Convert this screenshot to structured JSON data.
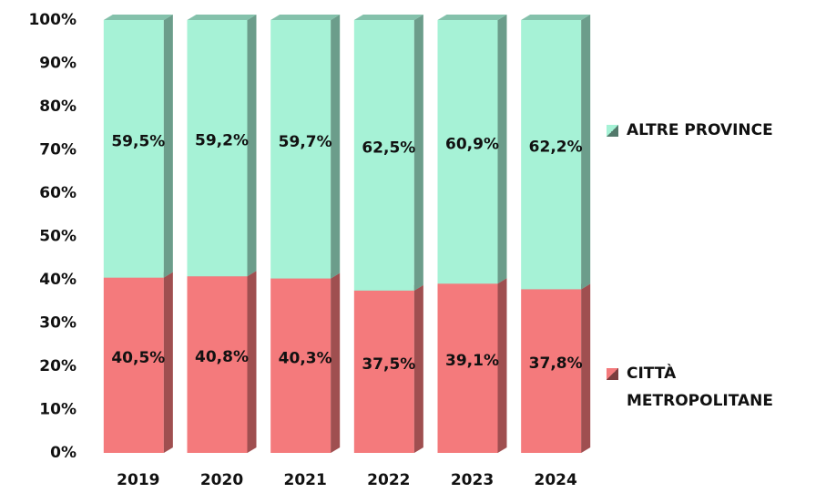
{
  "chart_data": {
    "type": "stacked_bar",
    "categories": [
      "2019",
      "2020",
      "2021",
      "2022",
      "2023",
      "2024"
    ],
    "series": [
      {
        "name": "CITTÀ METROPOLITANE",
        "color": "#f47a7c",
        "values": [
          40.5,
          40.8,
          40.3,
          37.5,
          39.1,
          37.8
        ],
        "value_labels": [
          "40,5%",
          "40,8%",
          "40,3%",
          "37,5%",
          "39,1%",
          "37,8%"
        ]
      },
      {
        "name": "ALTRE PROVINCE",
        "color": "#a6f2d6",
        "values": [
          59.5,
          59.2,
          59.7,
          62.5,
          60.9,
          62.2
        ],
        "value_labels": [
          "59,5%",
          "59,2%",
          "59,7%",
          "62,5%",
          "60,9%",
          "62,2%"
        ]
      }
    ],
    "ylim": [
      0,
      100
    ],
    "yticks": [
      {
        "value": 0,
        "label": "0%"
      },
      {
        "value": 10,
        "label": "10%"
      },
      {
        "value": 20,
        "label": "20%"
      },
      {
        "value": 30,
        "label": "30%"
      },
      {
        "value": 40,
        "label": "40%"
      },
      {
        "value": 50,
        "label": "50%"
      },
      {
        "value": 60,
        "label": "60%"
      },
      {
        "value": 70,
        "label": "70%"
      },
      {
        "value": 80,
        "label": "80%"
      },
      {
        "value": 90,
        "label": "90%"
      },
      {
        "value": 100,
        "label": "100%"
      }
    ],
    "legend": "right"
  }
}
